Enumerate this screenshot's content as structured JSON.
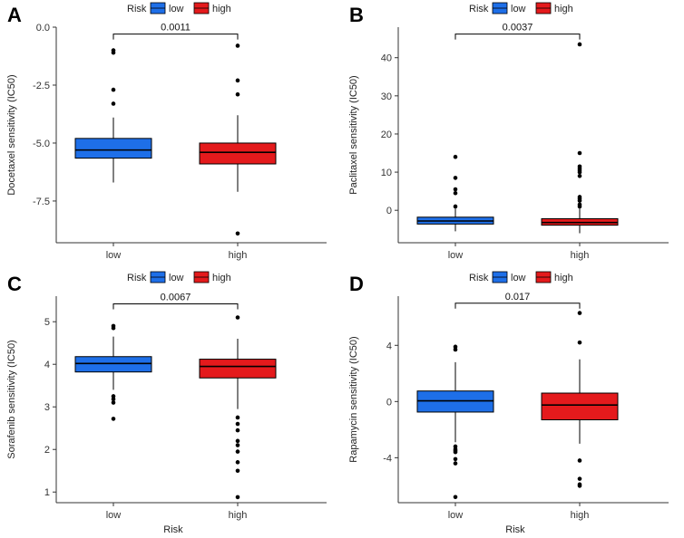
{
  "colors": {
    "low": "#1E6FE8",
    "high": "#E41A1C",
    "outline": "#000000",
    "axis": "#333333"
  },
  "legend": {
    "title": "Risk",
    "items": [
      "low",
      "high"
    ]
  },
  "chart_data": [
    {
      "id": "A",
      "panel_label": "A",
      "type": "boxplot",
      "title": "",
      "xlabel": "",
      "ylabel": "Docetaxel sensitivity (IC50)",
      "categories": [
        "low",
        "high"
      ],
      "ylim": [
        -9.3,
        0.0
      ],
      "yticks": [
        0.0,
        -2.5,
        -5.0,
        -7.5
      ],
      "ytick_labels": [
        "0.0",
        "-2.5",
        "-5.0",
        "-7.5"
      ],
      "boxes": [
        {
          "group": "low",
          "whisker_low": -6.7,
          "q1": -5.65,
          "median": -5.3,
          "q3": -4.8,
          "whisker_high": -3.9,
          "outliers": [
            -1.0,
            -1.1,
            -2.7,
            -3.3
          ]
        },
        {
          "group": "high",
          "whisker_low": -7.1,
          "q1": -5.9,
          "median": -5.4,
          "q3": -5.0,
          "whisker_high": -3.8,
          "outliers": [
            -0.8,
            -2.3,
            -2.9,
            -8.9
          ]
        }
      ],
      "pvalue": "0.0011",
      "pvalue_y": -0.3
    },
    {
      "id": "B",
      "panel_label": "B",
      "type": "boxplot",
      "title": "",
      "xlabel": "",
      "ylabel": "Paclitaxel sensitivity (IC50)",
      "categories": [
        "low",
        "high"
      ],
      "ylim": [
        -8.5,
        48.0
      ],
      "yticks": [
        0,
        10,
        20,
        30,
        40
      ],
      "ytick_labels": [
        "0",
        "10",
        "20",
        "30",
        "40"
      ],
      "boxes": [
        {
          "group": "low",
          "whisker_low": -5.5,
          "q1": -3.6,
          "median": -2.8,
          "q3": -1.8,
          "whisker_high": 0.5,
          "outliers": [
            14.0,
            8.5,
            5.5,
            4.5,
            1.0
          ]
        },
        {
          "group": "high",
          "whisker_low": -6.0,
          "q1": -3.9,
          "median": -3.2,
          "q3": -2.2,
          "whisker_high": 0.5,
          "outliers": [
            43.5,
            15.0,
            11.5,
            11.0,
            10.5,
            10.0,
            9.0,
            3.5,
            3.0,
            2.5,
            1.5,
            1.0
          ]
        }
      ],
      "pvalue": "0.0037",
      "pvalue_y": 46.2
    },
    {
      "id": "C",
      "panel_label": "C",
      "type": "boxplot",
      "title": "",
      "xlabel": "Risk",
      "ylabel": "Sorafenib sensitivity (IC50)",
      "categories": [
        "low",
        "high"
      ],
      "ylim": [
        0.75,
        5.6
      ],
      "yticks": [
        1,
        2,
        3,
        4,
        5
      ],
      "ytick_labels": [
        "1",
        "2",
        "3",
        "4",
        "5"
      ],
      "boxes": [
        {
          "group": "low",
          "whisker_low": 3.4,
          "q1": 3.82,
          "median": 4.02,
          "q3": 4.18,
          "whisker_high": 4.65,
          "outliers": [
            4.9,
            4.85,
            3.25,
            3.18,
            3.1,
            2.72
          ]
        },
        {
          "group": "high",
          "whisker_low": 2.95,
          "q1": 3.68,
          "median": 3.95,
          "q3": 4.12,
          "whisker_high": 4.6,
          "outliers": [
            5.1,
            2.75,
            2.6,
            2.45,
            2.2,
            2.1,
            1.95,
            1.7,
            1.5,
            0.88
          ]
        }
      ],
      "pvalue": "0.0067",
      "pvalue_y": 5.42
    },
    {
      "id": "D",
      "panel_label": "D",
      "type": "boxplot",
      "title": "",
      "xlabel": "Risk",
      "ylabel": "Rapamycin sensitivity (IC50)",
      "categories": [
        "low",
        "high"
      ],
      "ylim": [
        -7.2,
        7.5
      ],
      "yticks": [
        4,
        0,
        -4
      ],
      "ytick_labels": [
        "4",
        "0",
        "-4"
      ],
      "boxes": [
        {
          "group": "low",
          "whisker_low": -2.9,
          "q1": -0.75,
          "median": 0.05,
          "q3": 0.75,
          "whisker_high": 2.8,
          "outliers": [
            3.9,
            3.7,
            -3.2,
            -3.4,
            -3.5,
            -3.6,
            -4.1,
            -4.4,
            -6.8
          ]
        },
        {
          "group": "high",
          "whisker_low": -3.0,
          "q1": -1.3,
          "median": -0.25,
          "q3": 0.6,
          "whisker_high": 3.0,
          "outliers": [
            6.3,
            4.2,
            -4.2,
            -5.5,
            -5.9,
            -6.0
          ]
        }
      ],
      "pvalue": "0.017",
      "pvalue_y": 7.0
    }
  ]
}
